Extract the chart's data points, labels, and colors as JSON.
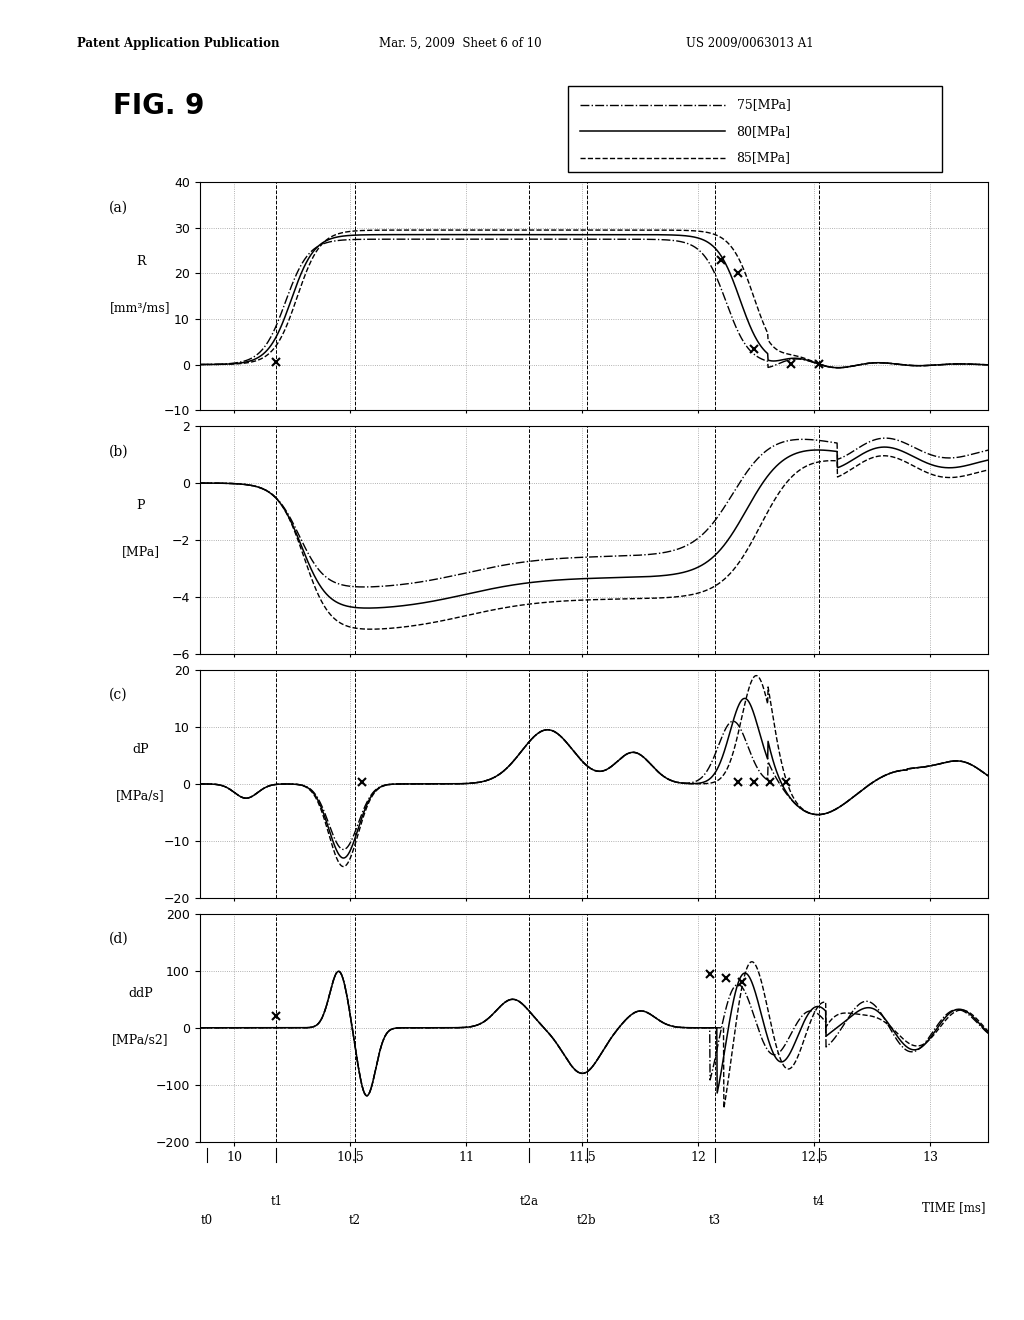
{
  "title": "FIG. 9",
  "header_left": "Patent Application Publication",
  "header_mid": "Mar. 5, 2009  Sheet 6 of 10",
  "header_right": "US 2009/0063013 A1",
  "legend_entries": [
    "75[MPa]",
    "80[MPa]",
    "85[MPa]"
  ],
  "time_range": [
    9.85,
    13.25
  ],
  "xticks": [
    10,
    10.5,
    11,
    11.5,
    12,
    12.5,
    13
  ],
  "xlabel": "TIME [ms]",
  "t_labels_row1": {
    "t1": 10.18,
    "t2a": 11.27,
    "t4": 12.52
  },
  "t_labels_row2": {
    "t0": 9.88,
    "t2": 10.52,
    "t2b": 11.52,
    "t3": 12.07
  },
  "vline_positions": [
    10.18,
    10.52,
    11.27,
    11.52,
    12.07,
    12.52
  ],
  "subplots": [
    {
      "label": "(a)",
      "ylabel1": "R",
      "ylabel2": "[mm³/ms]",
      "ylim": [
        -10,
        40
      ],
      "yticks": [
        -10,
        0,
        10,
        20,
        30,
        40
      ]
    },
    {
      "label": "(b)",
      "ylabel1": "P",
      "ylabel2": "[MPa]",
      "ylim": [
        -6,
        2
      ],
      "yticks": [
        -6,
        -4,
        -2,
        0,
        2
      ]
    },
    {
      "label": "(c)",
      "ylabel1": "dP",
      "ylabel2": "[MPa/s]",
      "ylim": [
        -20,
        20
      ],
      "yticks": [
        -20,
        -10,
        0,
        10,
        20
      ]
    },
    {
      "label": "(d)",
      "ylabel1": "ddP",
      "ylabel2": "[MPa/s2]",
      "ylim": [
        -200,
        200
      ],
      "yticks": [
        -200,
        -100,
        0,
        100,
        200
      ]
    }
  ]
}
